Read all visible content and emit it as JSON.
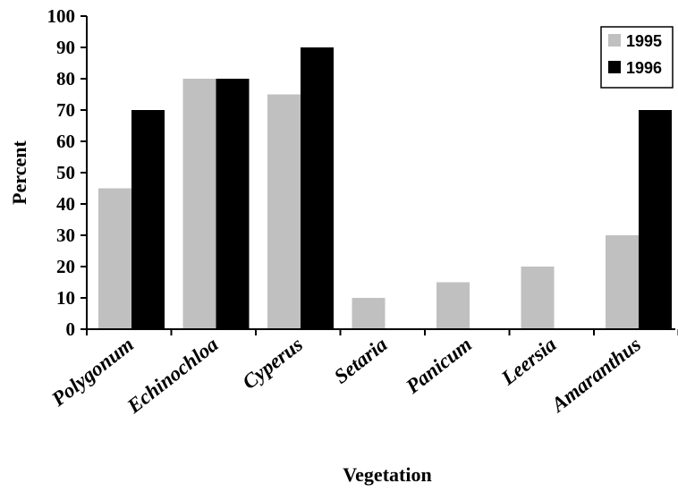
{
  "chart_data": {
    "type": "bar",
    "title": "",
    "xlabel": "Vegetation",
    "ylabel": "Percent",
    "ylim": [
      0,
      100
    ],
    "yticks": [
      0,
      10,
      20,
      30,
      40,
      50,
      60,
      70,
      80,
      90,
      100
    ],
    "categories": [
      "Polygonum",
      "Echinochloa",
      "Cyperus",
      "Setaria",
      "Panicum",
      "Leersia",
      "Amaranthus"
    ],
    "series": [
      {
        "name": "1995",
        "color": "#c0c0c0",
        "values": [
          45,
          80,
          75,
          10,
          15,
          20,
          30
        ]
      },
      {
        "name": "1996",
        "color": "#000000",
        "values": [
          70,
          80,
          90,
          0,
          0,
          0,
          70
        ]
      }
    ],
    "legend": "top-right",
    "grid": false
  }
}
